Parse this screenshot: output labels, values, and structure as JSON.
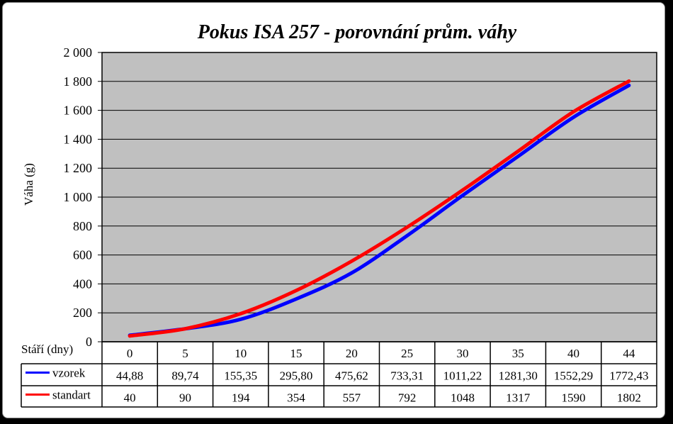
{
  "chart_data": {
    "type": "line",
    "title": "Pokus ISA 257 - porovnání prům. váhy",
    "ylabel": "Váha (g)",
    "xlabel": "Stáří (dny)",
    "ylim": [
      0,
      2000
    ],
    "y_ticks": [
      "0",
      "200",
      "400",
      "600",
      "800",
      "1 000",
      "1 200",
      "1 400",
      "1 600",
      "1 800",
      "2 000"
    ],
    "categories": [
      "0",
      "5",
      "10",
      "15",
      "20",
      "25",
      "30",
      "35",
      "40",
      "44"
    ],
    "grid": true,
    "legend": "data-table",
    "plot_background": "#c0c0c0",
    "series": [
      {
        "name": "vzorek",
        "color": "#0000ff",
        "values": [
          44.88,
          89.74,
          155.35,
          295.8,
          475.62,
          733.31,
          1011.22,
          1281.3,
          1552.29,
          1772.43
        ],
        "labels": [
          "44,88",
          "89,74",
          "155,35",
          "295,80",
          "475,62",
          "733,31",
          "1011,22",
          "1281,30",
          "1552,29",
          "1772,43"
        ]
      },
      {
        "name": "standart",
        "color": "#ff0000",
        "values": [
          40,
          90,
          194,
          354,
          557,
          792,
          1048,
          1317,
          1590,
          1802
        ],
        "labels": [
          "40",
          "90",
          "194",
          "354",
          "557",
          "792",
          "1048",
          "1317",
          "1590",
          "1802"
        ]
      }
    ]
  }
}
